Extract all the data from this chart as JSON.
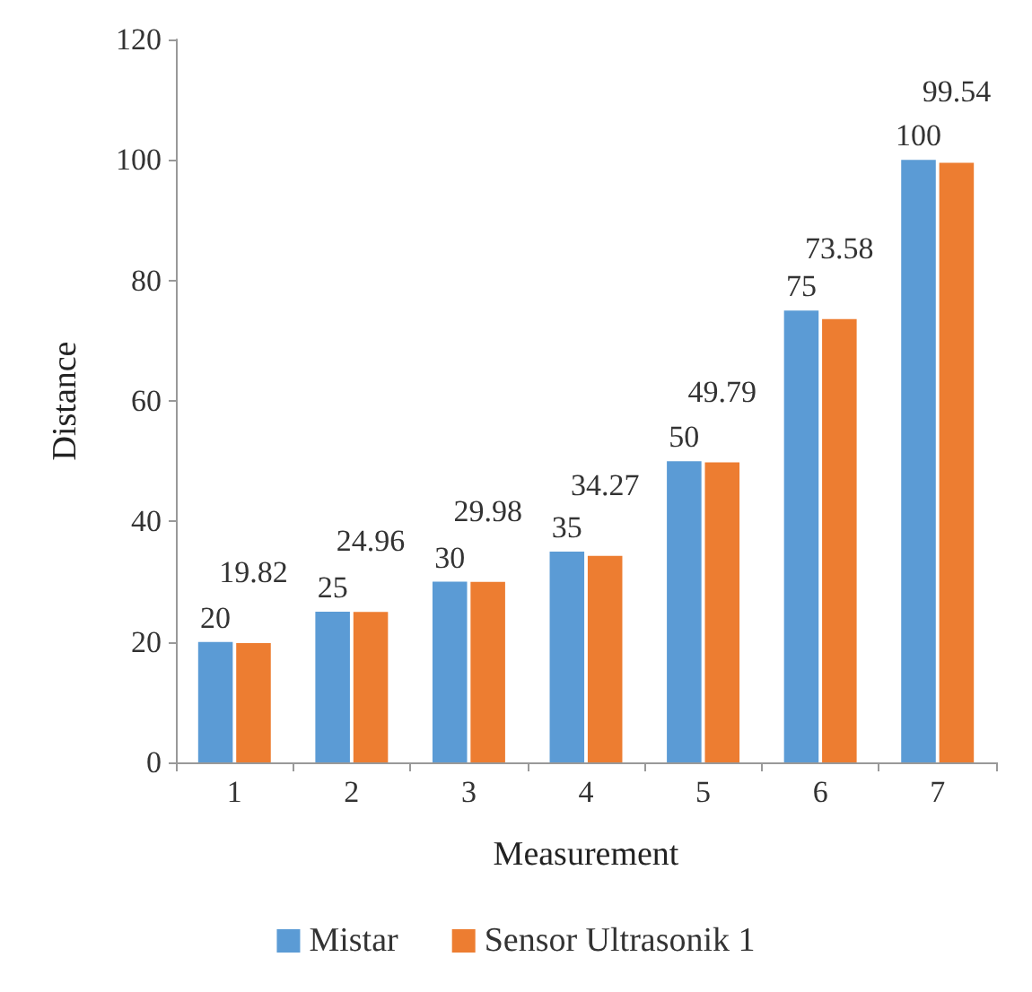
{
  "chart_data": {
    "type": "bar",
    "xlabel": "Measurement",
    "ylabel": "Distance",
    "categories": [
      "1",
      "2",
      "3",
      "4",
      "5",
      "6",
      "7"
    ],
    "series": [
      {
        "name": "Mistar",
        "color": "#5b9bd5",
        "values": [
          20,
          25,
          30,
          35,
          50,
          75,
          100
        ]
      },
      {
        "name": "Sensor Ultrasonik 1",
        "color": "#ed7d31",
        "values": [
          19.82,
          24.96,
          29.98,
          34.27,
          49.79,
          73.58,
          99.54
        ]
      }
    ],
    "ylim": [
      0,
      120
    ],
    "yticks": [
      0,
      20,
      40,
      60,
      80,
      100,
      120
    ],
    "grid": false,
    "legend": "bottom",
    "data_labels": true
  }
}
